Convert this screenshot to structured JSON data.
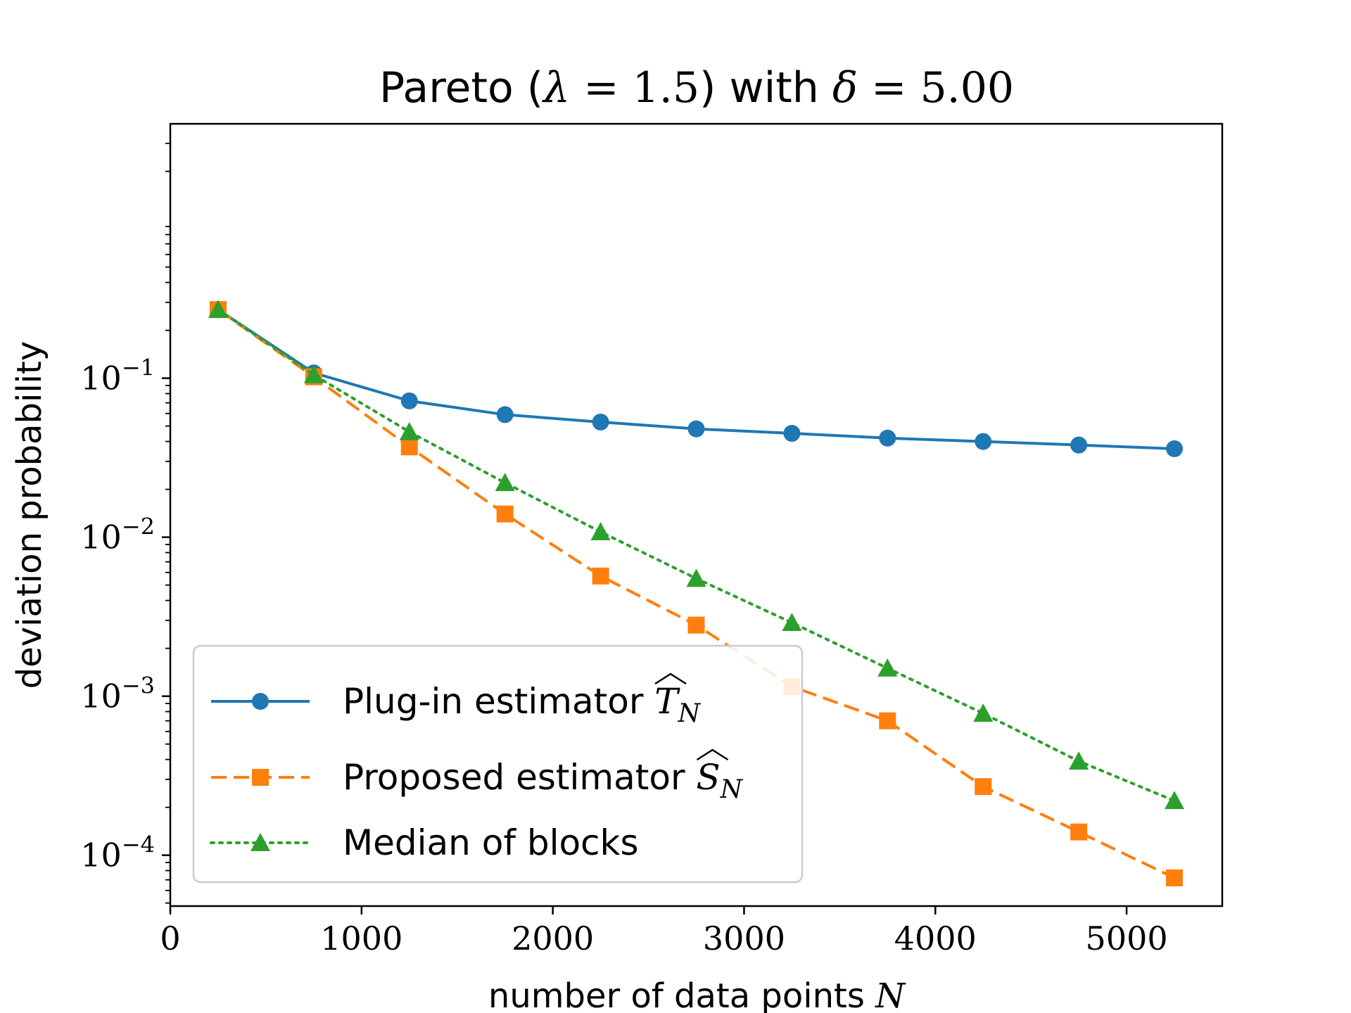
{
  "chart_data": {
    "type": "line",
    "title": {
      "text_prefix": "Pareto (",
      "lambda_symbol": "λ",
      "lambda_eq": " = 1.5",
      "mid": ") with ",
      "delta_symbol": "δ",
      "delta_eq": " = 5.00"
    },
    "xlabel": {
      "text": "number of data points ",
      "var": "N"
    },
    "ylabel": "deviation probability",
    "yscale": "log",
    "xlim": [
      0,
      5500
    ],
    "ylim_log10": [
      -4.32,
      0.6
    ],
    "x_ticks": [
      0,
      1000,
      2000,
      3000,
      4000,
      5000
    ],
    "x_tick_labels": [
      "0",
      "1000",
      "2000",
      "3000",
      "4000",
      "5000"
    ],
    "y_ticks_log10": [
      -1,
      -2,
      -3,
      -4
    ],
    "y_tick_labels": [
      {
        "base": "10",
        "exp": "−1"
      },
      {
        "base": "10",
        "exp": "−2"
      },
      {
        "base": "10",
        "exp": "−3"
      },
      {
        "base": "10",
        "exp": "−4"
      }
    ],
    "x": [
      250,
      750,
      1250,
      1750,
      2250,
      2750,
      3250,
      3750,
      4250,
      4750,
      5250
    ],
    "series": [
      {
        "name": "Plug-in estimator",
        "symbol": "T",
        "subscript": "N",
        "color": "#1f77b4",
        "linestyle": "solid",
        "marker": "circle",
        "values": [
          0.27,
          0.108,
          0.072,
          0.059,
          0.053,
          0.048,
          0.045,
          0.042,
          0.04,
          0.038,
          0.036
        ]
      },
      {
        "name": "Proposed estimator",
        "symbol": "S",
        "subscript": "N",
        "color": "#ff7f0e",
        "linestyle": "dashed",
        "marker": "square",
        "values": [
          0.27,
          0.102,
          0.037,
          0.014,
          0.0057,
          0.0028,
          0.00115,
          0.0007,
          0.00027,
          0.00014,
          7.2e-05
        ]
      },
      {
        "name": "Median of blocks",
        "symbol": "",
        "subscript": "",
        "color": "#2ca02c",
        "linestyle": "dotted",
        "marker": "triangle",
        "values": [
          0.27,
          0.105,
          0.046,
          0.022,
          0.0108,
          0.0055,
          0.0029,
          0.0015,
          0.00078,
          0.00039,
          0.00022
        ]
      }
    ],
    "legend_position": "lower-left"
  }
}
